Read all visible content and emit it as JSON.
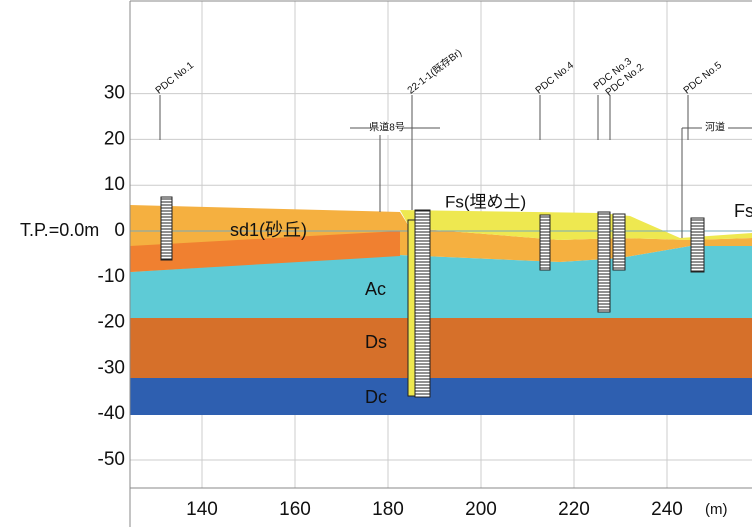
{
  "axes": {
    "yticks": [
      30,
      20,
      10,
      0,
      -10,
      -20,
      -30,
      -40,
      -50
    ],
    "xticks": [
      140,
      160,
      180,
      200,
      220,
      240
    ],
    "x_unit": "(m)",
    "datum": "T.P.=0.0m"
  },
  "layers": [
    "sd1(砂丘)",
    "Fs(埋め土)",
    "Ac",
    "Ds",
    "Dc",
    "Fs"
  ],
  "boreholes": [
    "PDC No.1",
    "22-1-1(既存Br)",
    "PDC No.4",
    "PDC No.3",
    "PDC No.2",
    "PDC No.5"
  ],
  "roads": [
    "県道8号",
    "河道"
  ]
}
